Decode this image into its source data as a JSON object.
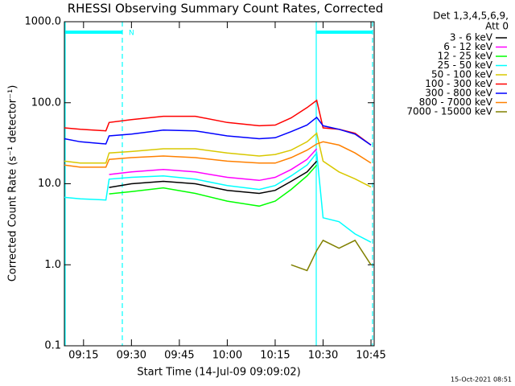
{
  "chart_data": {
    "type": "line",
    "title": "RHESSI Observing Summary Count Rates, Corrected",
    "xlabel": "Start Time (14-Jul-09 09:09:02)",
    "ylabel": "Corrected Count Rate (s⁻¹ detector⁻¹)",
    "legend_title": [
      "Det 1,3,4,5,6,9,",
      "Att 0"
    ],
    "annotation": "N",
    "footer": "15-Oct-2021 08:51",
    "log_y": true,
    "legend": "outside-right",
    "x": [
      "09:09",
      "09:14",
      "09:22",
      "09:23",
      "09:30",
      "09:40",
      "09:50",
      "10:00",
      "10:10",
      "10:15",
      "10:20",
      "10:25",
      "10:28",
      "10:30",
      "10:35",
      "10:40",
      "10:45"
    ],
    "xlim": [
      "09:09",
      "10:46"
    ],
    "xticks": [
      "09:15",
      "09:30",
      "09:45",
      "10:00",
      "10:15",
      "10:30",
      "10:45"
    ],
    "ylim": [
      0.1,
      1000
    ],
    "yticks": [
      {
        "value": 0.1,
        "label": "0.1"
      },
      {
        "value": 1,
        "label": "1.0"
      },
      {
        "value": 10,
        "label": "10.0"
      },
      {
        "value": 100,
        "label": "100.0"
      },
      {
        "value": 1000,
        "label": "1000.0"
      }
    ],
    "series": [
      {
        "name": "3 - 6 keV",
        "color": "#000000",
        "values": [
          null,
          null,
          null,
          9,
          10,
          10.7,
          10,
          8.3,
          7.6,
          8.3,
          10.7,
          14,
          19,
          null,
          null,
          null,
          null
        ]
      },
      {
        "name": "6 - 12 keV",
        "color": "#ff00ff",
        "values": [
          null,
          null,
          null,
          13,
          14,
          15,
          14,
          12,
          11,
          12,
          15,
          20,
          27,
          null,
          null,
          null,
          null
        ]
      },
      {
        "name": "12 - 25 keV",
        "color": "#00ff00",
        "values": [
          null,
          null,
          null,
          7.5,
          8,
          8.9,
          7.6,
          6.1,
          5.3,
          6.1,
          8.5,
          12.5,
          17,
          null,
          null,
          null,
          null
        ]
      },
      {
        "name": "25 - 50 keV",
        "color": "#00ffff",
        "values": [
          6.8,
          6.5,
          6.3,
          11.4,
          12,
          12.5,
          11.4,
          9.5,
          8.5,
          9.5,
          12.5,
          17,
          24,
          3.8,
          3.4,
          2.4,
          1.9
        ]
      },
      {
        "name": "50 - 100 keV",
        "color": "#d8c800",
        "values": [
          19,
          18,
          18,
          24,
          25,
          27,
          27,
          24,
          22,
          23,
          26,
          33,
          42,
          19,
          14,
          11.5,
          9.1
        ]
      },
      {
        "name": "100 - 300 keV",
        "color": "#ff0000",
        "values": [
          49,
          47,
          45,
          57,
          62,
          68,
          68,
          57,
          52,
          53,
          65,
          87,
          107,
          49,
          47,
          42,
          30
        ]
      },
      {
        "name": "300 - 800 keV",
        "color": "#0000ff",
        "values": [
          36,
          33,
          31,
          39,
          41,
          46,
          45,
          39,
          36,
          37,
          44,
          53,
          66,
          52,
          47,
          41,
          30
        ]
      },
      {
        "name": "800 - 7000 keV",
        "color": "#ff8000",
        "values": [
          17,
          16,
          16,
          20,
          21,
          22,
          21,
          19,
          18,
          18,
          21,
          26,
          31,
          33,
          30,
          24,
          18
        ]
      },
      {
        "name": "7000 - 15000 keV",
        "color": "#808000",
        "values": [
          null,
          null,
          null,
          null,
          null,
          null,
          null,
          null,
          null,
          null,
          1,
          0.85,
          1.5,
          2,
          1.6,
          2,
          1
        ]
      }
    ]
  }
}
